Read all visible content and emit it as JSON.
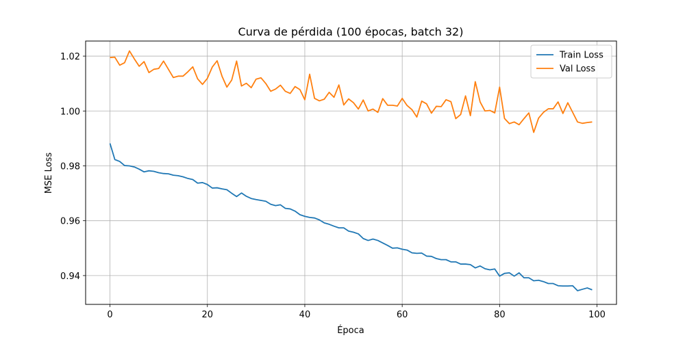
{
  "chart_data": {
    "type": "line",
    "title": "Curva de pérdida (100 épocas, batch 32)",
    "xlabel": "Época",
    "ylabel": "MSE Loss",
    "xlim": [
      -5,
      104
    ],
    "ylim": [
      0.9295,
      1.0255
    ],
    "xticks": [
      0,
      20,
      40,
      60,
      80,
      100
    ],
    "xtick_labels": [
      "0",
      "20",
      "40",
      "60",
      "80",
      "100"
    ],
    "yticks": [
      0.94,
      0.96,
      0.98,
      1.0,
      1.02
    ],
    "ytick_labels": [
      "0.94",
      "0.96",
      "0.98",
      "1.00",
      "1.02"
    ],
    "grid": true,
    "legend_position": "top-right",
    "x": [
      0,
      1,
      2,
      3,
      4,
      5,
      6,
      7,
      8,
      9,
      10,
      11,
      12,
      13,
      14,
      15,
      16,
      17,
      18,
      19,
      20,
      21,
      22,
      23,
      24,
      25,
      26,
      27,
      28,
      29,
      30,
      31,
      32,
      33,
      34,
      35,
      36,
      37,
      38,
      39,
      40,
      41,
      42,
      43,
      44,
      45,
      46,
      47,
      48,
      49,
      50,
      51,
      52,
      53,
      54,
      55,
      56,
      57,
      58,
      59,
      60,
      61,
      62,
      63,
      64,
      65,
      66,
      67,
      68,
      69,
      70,
      71,
      72,
      73,
      74,
      75,
      76,
      77,
      78,
      79,
      80,
      81,
      82,
      83,
      84,
      85,
      86,
      87,
      88,
      89,
      90,
      91,
      92,
      93,
      94,
      95,
      96,
      97,
      98,
      99
    ],
    "series": [
      {
        "name": "Train Loss",
        "color": "#1f77b4",
        "values": [
          0.9882,
          0.9823,
          0.9816,
          0.9801,
          0.98,
          0.9796,
          0.9788,
          0.9778,
          0.9782,
          0.978,
          0.9775,
          0.9772,
          0.9771,
          0.9766,
          0.9764,
          0.976,
          0.9754,
          0.975,
          0.9737,
          0.9739,
          0.9732,
          0.9719,
          0.972,
          0.9716,
          0.9713,
          0.97,
          0.9688,
          0.9701,
          0.9689,
          0.9681,
          0.9677,
          0.9674,
          0.9671,
          0.966,
          0.9655,
          0.9658,
          0.9645,
          0.9643,
          0.9635,
          0.9622,
          0.9616,
          0.9612,
          0.961,
          0.9603,
          0.9592,
          0.9587,
          0.958,
          0.9574,
          0.9574,
          0.9562,
          0.9558,
          0.9552,
          0.9535,
          0.9528,
          0.9533,
          0.9528,
          0.9519,
          0.951,
          0.95,
          0.9501,
          0.9496,
          0.9493,
          0.9483,
          0.9481,
          0.9482,
          0.9471,
          0.947,
          0.9462,
          0.9458,
          0.9458,
          0.945,
          0.945,
          0.9442,
          0.9442,
          0.944,
          0.9428,
          0.9435,
          0.9425,
          0.9421,
          0.9424,
          0.9398,
          0.9408,
          0.941,
          0.9398,
          0.941,
          0.9392,
          0.9392,
          0.9381,
          0.9383,
          0.9378,
          0.9371,
          0.9371,
          0.9363,
          0.9362,
          0.9362,
          0.9363,
          0.9345,
          0.935,
          0.9355,
          0.9348
        ]
      },
      {
        "name": "Val Loss",
        "color": "#ff7f0e",
        "values": [
          1.0195,
          1.0196,
          1.0167,
          1.0176,
          1.0219,
          1.019,
          1.0163,
          1.018,
          1.014,
          1.0152,
          1.0155,
          1.0182,
          1.0152,
          1.0122,
          1.0127,
          1.0127,
          1.0143,
          1.0161,
          1.0117,
          1.0097,
          1.0119,
          1.016,
          1.0183,
          1.0127,
          1.0087,
          1.0113,
          1.0182,
          1.0091,
          1.0101,
          1.0085,
          1.0116,
          1.0121,
          1.01,
          1.0072,
          1.008,
          1.0094,
          1.0072,
          1.0064,
          1.0089,
          1.0078,
          1.0041,
          1.0134,
          1.0046,
          1.0037,
          1.0043,
          1.0068,
          1.005,
          1.0095,
          1.0022,
          1.0044,
          1.003,
          1.0007,
          1.004,
          1.0,
          1.0007,
          0.9995,
          1.0045,
          1.0021,
          1.0021,
          1.0018,
          1.0046,
          1.002,
          1.0005,
          0.9978,
          1.0036,
          1.0026,
          0.9992,
          1.0017,
          1.0016,
          1.0041,
          1.0034,
          0.9972,
          0.9987,
          1.0055,
          0.9983,
          1.0107,
          1.0033,
          1.0,
          1.0002,
          0.9993,
          1.0087,
          0.9973,
          0.9954,
          0.996,
          0.995,
          0.9972,
          0.9993,
          0.9922,
          0.9974,
          0.9995,
          1.0008,
          1.0008,
          1.0033,
          0.9991,
          1.003,
          0.9995,
          0.996,
          0.9955,
          0.9958,
          0.996
        ]
      }
    ]
  }
}
